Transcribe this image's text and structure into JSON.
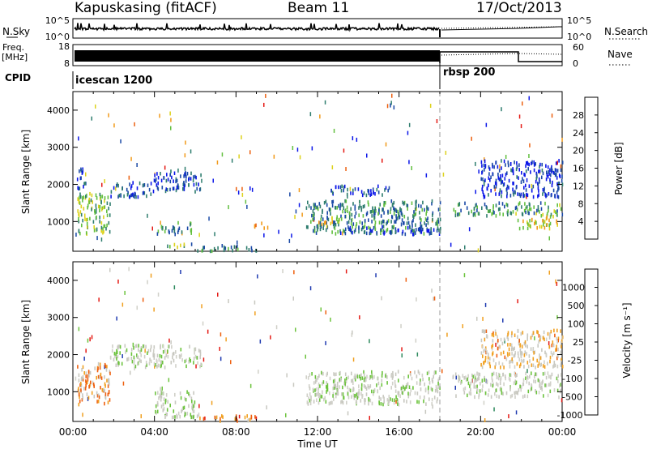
{
  "header": {
    "station": "Kapuskasing (fitACF)",
    "beam": "Beam 11",
    "date": "17/Oct/2013"
  },
  "strips": {
    "noise": {
      "left_label": "N.Sky",
      "right_label": "N.Search",
      "left_ticks": [
        "10^5",
        "10^0"
      ],
      "right_ticks": [
        "10^5",
        "10^0"
      ]
    },
    "freq": {
      "left_label_top": "Freq.",
      "left_label_unit": "[MHz]",
      "left_ticks": [
        "18",
        "8"
      ],
      "right_label": "Nave",
      "right_ticks": [
        "60",
        "0"
      ]
    },
    "cpid": {
      "label": "CPID",
      "modes": [
        {
          "name": "icescan 1200",
          "start_hour": 0
        },
        {
          "name": "rbsp 200",
          "start_hour": 18
        }
      ]
    }
  },
  "chart_data": [
    {
      "type": "heatmap",
      "name": "power",
      "ylabel": "Slant Range [km]",
      "xlabel": "",
      "xlim": [
        0,
        24
      ],
      "ylim": [
        200,
        4500
      ],
      "yticks": [
        "1000",
        "2000",
        "3000",
        "4000"
      ],
      "xticks": [],
      "colorbar": {
        "label": "Power [dB]",
        "ticks": [
          "4",
          "8",
          "12",
          "16",
          "20",
          "24",
          "28"
        ],
        "colors": [
          "#0b16e8",
          "#1a49a6",
          "#2e7d6e",
          "#62bf3f",
          "#ddd21c",
          "#f19a1a",
          "#ec6010",
          "#e41a14"
        ]
      },
      "mode_change_hour": 18,
      "echo_regions": [
        {
          "t0": 0.2,
          "t1": 1.8,
          "r0": 700,
          "r1": 1800,
          "level": 0.45
        },
        {
          "t0": 0.1,
          "t1": 0.6,
          "r0": 1900,
          "r1": 2500,
          "level": 0.2
        },
        {
          "t0": 1.8,
          "t1": 3.8,
          "r0": 1700,
          "r1": 2100,
          "level": 0.2
        },
        {
          "t0": 3.8,
          "t1": 6.3,
          "r0": 1850,
          "r1": 2400,
          "level": 0.15
        },
        {
          "t0": 4.0,
          "t1": 5.8,
          "r0": 700,
          "r1": 950,
          "level": 0.3
        },
        {
          "t0": 5.0,
          "t1": 5.8,
          "r0": 950,
          "r1": 1050,
          "level": 0.4
        },
        {
          "t0": 4.5,
          "t1": 6.0,
          "r0": 350,
          "r1": 450,
          "level": 0.4
        },
        {
          "t0": 6.0,
          "t1": 9.0,
          "r0": 250,
          "r1": 400,
          "level": 0.25
        },
        {
          "t0": 8.8,
          "t1": 9.4,
          "r0": 850,
          "r1": 1000,
          "level": 0.7
        },
        {
          "t0": 11.4,
          "t1": 18.0,
          "r0": 700,
          "r1": 1600,
          "level": 0.3
        },
        {
          "t0": 12.0,
          "t1": 13.2,
          "r0": 900,
          "r1": 1150,
          "level": 0.55
        },
        {
          "t0": 13.0,
          "t1": 18.0,
          "r0": 700,
          "r1": 900,
          "level": 0.15
        },
        {
          "t0": 12.5,
          "t1": 15.5,
          "r0": 1750,
          "r1": 2000,
          "level": 0.15
        },
        {
          "t0": 18.6,
          "t1": 24.0,
          "r0": 1200,
          "r1": 1550,
          "level": 0.35
        },
        {
          "t0": 21.8,
          "t1": 23.8,
          "r0": 850,
          "r1": 1200,
          "level": 0.55
        },
        {
          "t0": 20.0,
          "t1": 24.0,
          "r0": 1700,
          "r1": 2700,
          "level": 0.12
        }
      ]
    },
    {
      "type": "heatmap",
      "name": "velocity",
      "ylabel": "Slant Range [km]",
      "xlabel": "Time UT",
      "xlim": [
        0,
        24
      ],
      "ylim": [
        200,
        4500
      ],
      "yticks": [
        "1000",
        "2000",
        "3000",
        "4000"
      ],
      "xticks": [
        "00:00",
        "04:00",
        "08:00",
        "12:00",
        "16:00",
        "20:00",
        "00:00"
      ],
      "colorbar": {
        "label": "Velocity [m s⁻¹]",
        "ticks": [
          "1000",
          "500",
          "100",
          "25",
          "-25",
          "-100",
          "-500",
          "-1000"
        ],
        "colors": [
          "#1f3ab0",
          "#2f8a5e",
          "#6cc33d",
          "#d0d0c8",
          "#c8c8c0",
          "#f0a020",
          "#ee6010",
          "#e41a14"
        ]
      },
      "mode_change_hour": 18,
      "echo_regions": [
        {
          "t0": 0.2,
          "t1": 1.8,
          "r0": 700,
          "r1": 1800,
          "level": 0.7
        },
        {
          "t0": 1.8,
          "t1": 6.3,
          "r0": 1700,
          "r1": 2300,
          "level": 0.45
        },
        {
          "t0": 4.0,
          "t1": 6.0,
          "r0": 350,
          "r1": 1050,
          "level": 0.45
        },
        {
          "t0": 6.0,
          "t1": 9.0,
          "r0": 250,
          "r1": 400,
          "level": 0.75
        },
        {
          "t0": 11.4,
          "t1": 18.0,
          "r0": 700,
          "r1": 1600,
          "level": 0.45
        },
        {
          "t0": 18.6,
          "t1": 24.0,
          "r0": 900,
          "r1": 1550,
          "level": 0.45
        },
        {
          "t0": 20.0,
          "t1": 24.0,
          "r0": 1700,
          "r1": 2700,
          "level": 0.6
        }
      ]
    }
  ]
}
